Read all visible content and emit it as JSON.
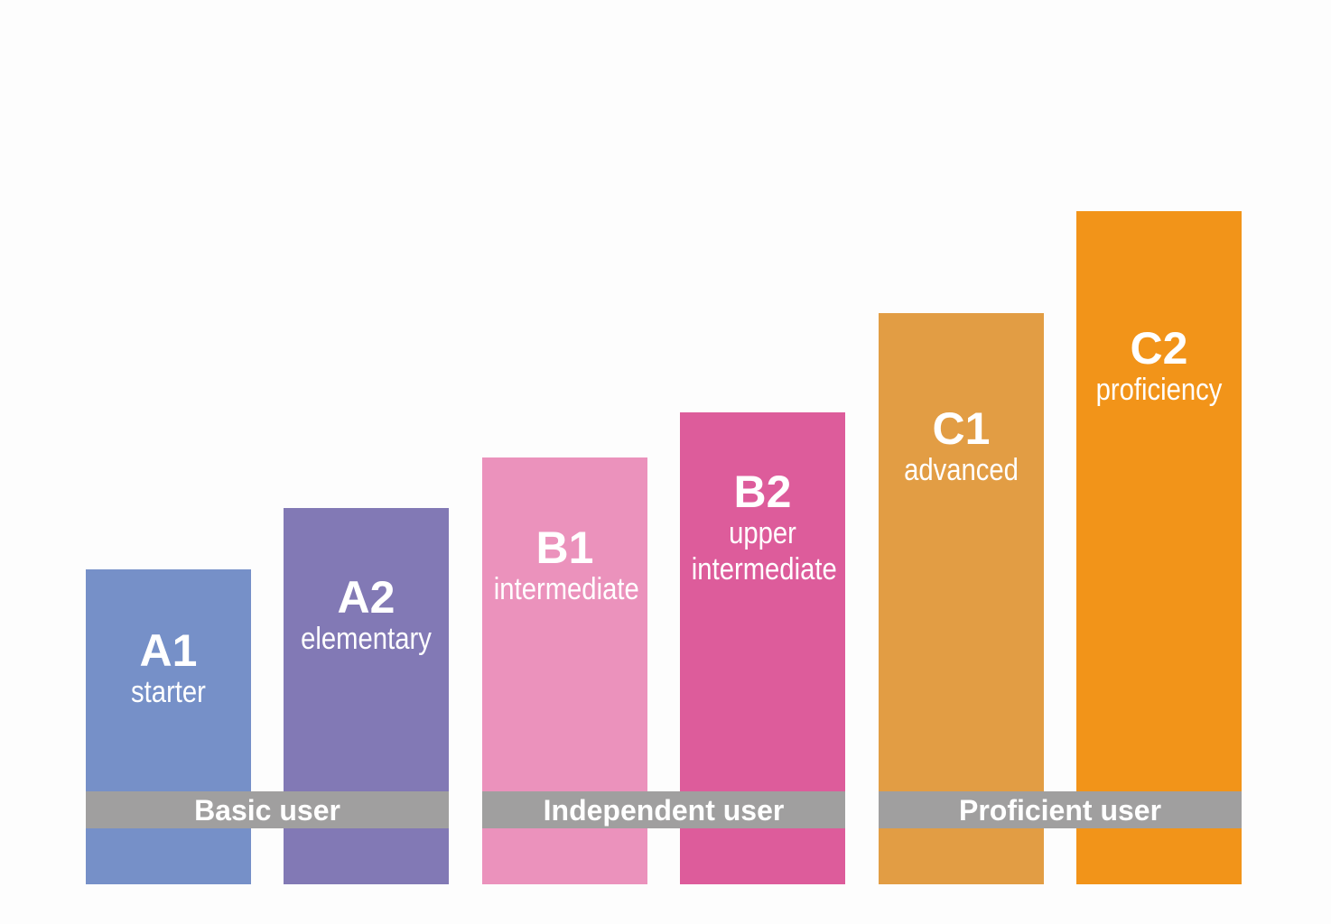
{
  "levels": [
    {
      "code": "A1",
      "name": [
        "starter"
      ],
      "color": "#7690c8"
    },
    {
      "code": "A2",
      "name": [
        "elementary"
      ],
      "color": "#8279b5"
    },
    {
      "code": "B1",
      "name": [
        "intermediate"
      ],
      "color": "#eb92bc"
    },
    {
      "code": "B2",
      "name": [
        "upper",
        "intermediate"
      ],
      "color": "#dd5c9b"
    },
    {
      "code": "C1",
      "name": [
        "advanced"
      ],
      "color": "#e29d44"
    },
    {
      "code": "C2",
      "name": [
        "proficiency"
      ],
      "color": "#f29419"
    }
  ],
  "groups": [
    {
      "label": "Basic user",
      "color": "#a09f9f"
    },
    {
      "label": "Independent user",
      "color": "#a09f9f"
    },
    {
      "label": "Proficient user",
      "color": "#a09f9f"
    }
  ]
}
